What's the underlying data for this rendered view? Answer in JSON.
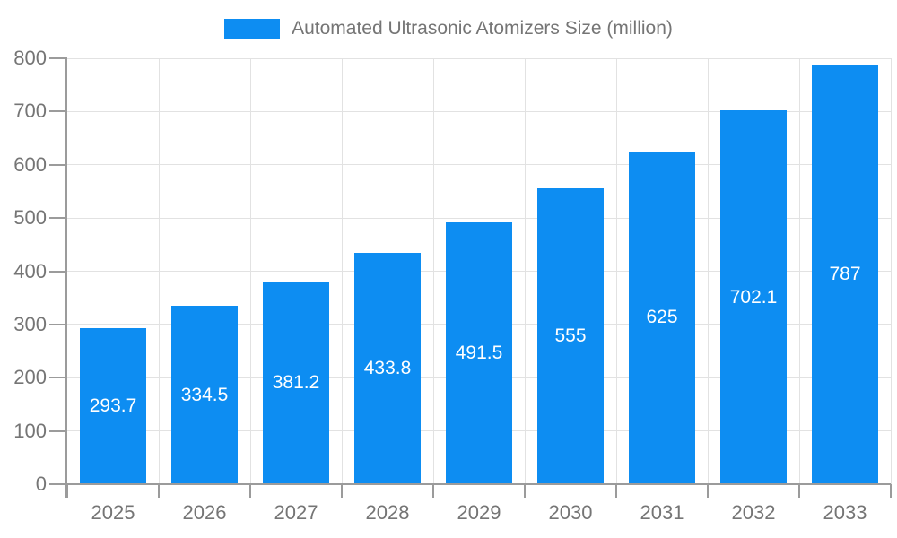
{
  "legend": {
    "label": "Automated Ultrasonic Atomizers Size (million)"
  },
  "chart_data": {
    "type": "bar",
    "title": "Automated Ultrasonic Atomizers Size (million)",
    "categories": [
      "2025",
      "2026",
      "2027",
      "2028",
      "2029",
      "2030",
      "2031",
      "2032",
      "2033"
    ],
    "values": [
      293.7,
      334.5,
      381.2,
      433.8,
      491.5,
      555,
      625,
      702.1,
      787
    ],
    "value_labels": [
      "293.7",
      "334.5",
      "381.2",
      "433.8",
      "491.5",
      "555",
      "625",
      "702.1",
      "787"
    ],
    "xlabel": "",
    "ylabel": "",
    "ylim": [
      0,
      800
    ],
    "ytick_step": 100,
    "ytick_labels": [
      "0",
      "100",
      "200",
      "300",
      "400",
      "500",
      "600",
      "700",
      "800"
    ],
    "grid": "horizontal-and-vertical",
    "legend_position": "top-center",
    "value_label_position": "inside-center",
    "colors": {
      "bar": "#0D8DF2",
      "value_label": "#FFFFFF",
      "axis_text": "#757575",
      "gridline": "#E2E2E2",
      "axis_line": "#9B9B9B",
      "background": "#FFFFFF"
    }
  }
}
